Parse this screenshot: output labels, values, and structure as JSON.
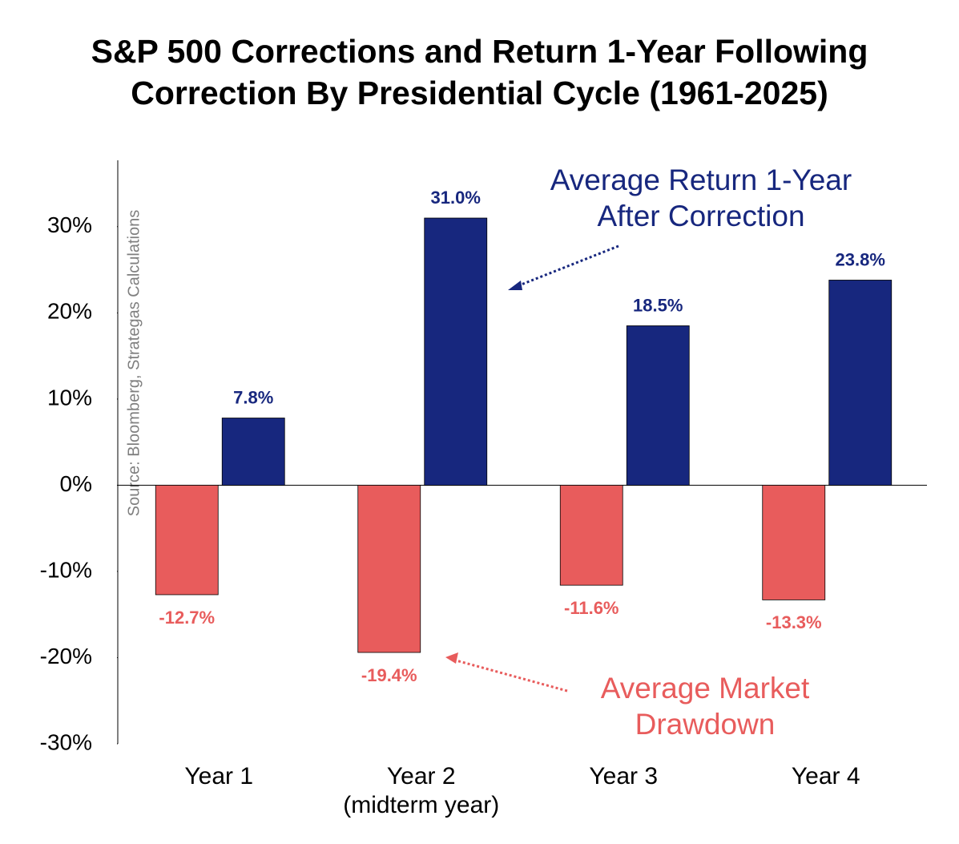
{
  "chart_data": {
    "type": "bar",
    "title": "S&P 500 Corrections and Return 1-Year Following\nCorrection By Presidential Cycle (1961-2025)",
    "source": "Source: Bloomberg, Strategas Calculations",
    "categories": [
      "Year 1",
      "Year 2\n(midterm year)",
      "Year 3",
      "Year 4"
    ],
    "series": [
      {
        "name": "Average Market\nDrawdown",
        "color": "#e85c5c",
        "values": [
          -12.7,
          -19.4,
          -11.6,
          -13.3
        ],
        "value_labels": [
          "-12.7%",
          "-19.4%",
          "-11.6%",
          "-13.3%"
        ]
      },
      {
        "name": "Average Return 1-Year\nAfter Correction",
        "color": "#17277e",
        "values": [
          7.8,
          31.0,
          18.5,
          23.8
        ],
        "value_labels": [
          "7.8%",
          "31.0%",
          "18.5%",
          "23.8%"
        ]
      }
    ],
    "ylim": [
      -30,
      37.7
    ],
    "yticks": [
      {
        "value": -30,
        "label": "-30%"
      },
      {
        "value": -20,
        "label": "-20%"
      },
      {
        "value": -10,
        "label": "-10%"
      },
      {
        "value": 0,
        "label": "0%"
      },
      {
        "value": 10,
        "label": "10%"
      },
      {
        "value": 20,
        "label": "20%"
      },
      {
        "value": 30,
        "label": "30%"
      }
    ]
  }
}
